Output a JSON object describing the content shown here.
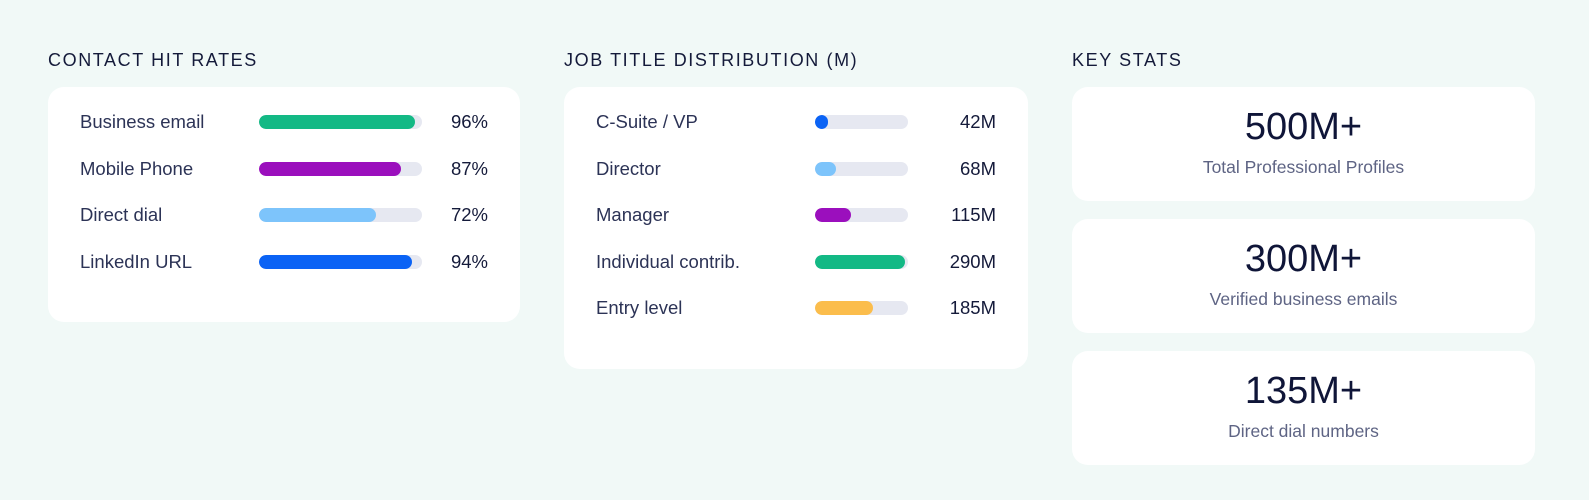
{
  "contact_hit_rates": {
    "title": "CONTACT HIT RATES",
    "rows": [
      {
        "label": "Business email",
        "value": "96%",
        "fill": 0.96,
        "color": "#13b985"
      },
      {
        "label": "Mobile Phone",
        "value": "87%",
        "fill": 0.87,
        "color": "#9b0fbd"
      },
      {
        "label": "Direct dial",
        "value": "72%",
        "fill": 0.72,
        "color": "#7dc4fb"
      },
      {
        "label": "LinkedIn URL",
        "value": "94%",
        "fill": 0.94,
        "color": "#0b63f5"
      }
    ]
  },
  "job_title_distribution": {
    "title": "JOB TITLE DISTRIBUTION (M)",
    "rows": [
      {
        "label": "C-Suite / VP",
        "value": "42M",
        "fill": 0.14,
        "color": "#0b63f5"
      },
      {
        "label": "Director",
        "value": "68M",
        "fill": 0.23,
        "color": "#7dc4fb"
      },
      {
        "label": "Manager",
        "value": "115M",
        "fill": 0.39,
        "color": "#9b0fbd"
      },
      {
        "label": "Individual contrib.",
        "value": "290M",
        "fill": 0.97,
        "color": "#13b985"
      },
      {
        "label": "Entry level",
        "value": "185M",
        "fill": 0.62,
        "color": "#fbbd4c"
      }
    ]
  },
  "key_stats": {
    "title": "KEY STATS",
    "cards": [
      {
        "value": "500M+",
        "label": "Total Professional Profiles"
      },
      {
        "value": "300M+",
        "label": "Verified business emails"
      },
      {
        "value": "135M+",
        "label": "Direct dial numbers"
      }
    ]
  }
}
